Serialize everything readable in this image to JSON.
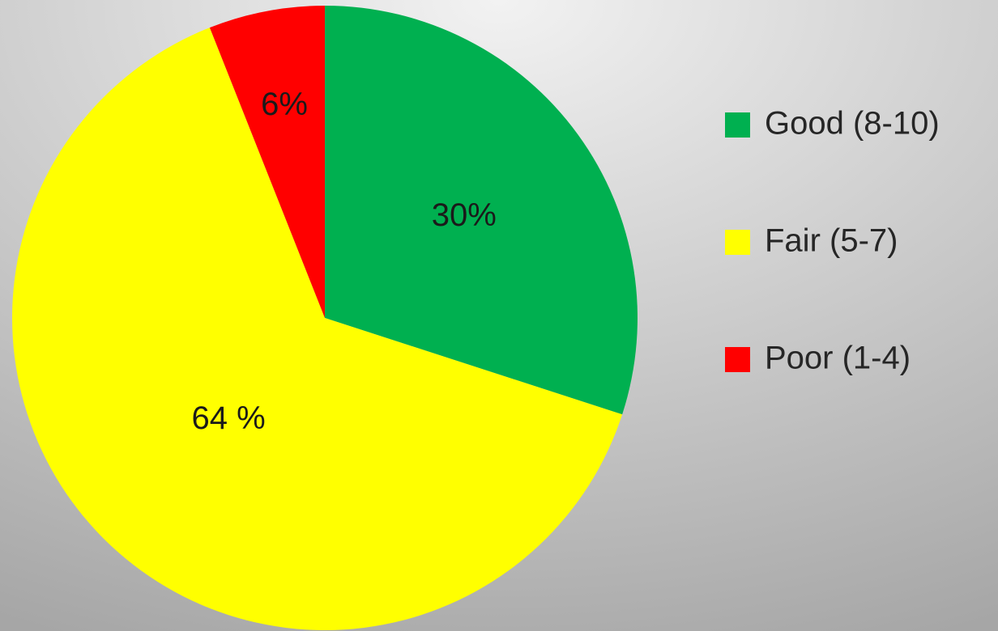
{
  "chart_data": {
    "type": "pie",
    "categories": [
      "Good (8-10)",
      "Fair (5-7)",
      "Poor (1-4)"
    ],
    "values": [
      30,
      64,
      6
    ],
    "value_labels": [
      "30%",
      "64 %",
      "6%"
    ],
    "colors": [
      "#00b050",
      "#ffff00",
      "#ff0000"
    ],
    "legend": "right"
  }
}
